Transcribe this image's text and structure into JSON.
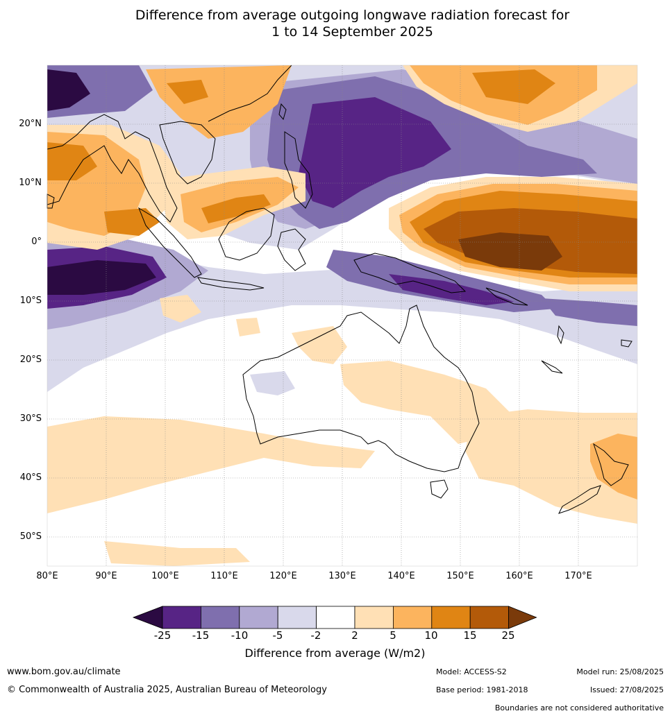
{
  "title": {
    "line1": "Difference from average outgoing longwave radiation forecast for",
    "line2": "1 to 14 September 2025"
  },
  "map": {
    "lat_labels": [
      "20°N",
      "10°N",
      "0°",
      "10°S",
      "20°S",
      "30°S",
      "40°S",
      "50°S"
    ],
    "lon_labels": [
      "80°E",
      "90°E",
      "100°E",
      "110°E",
      "120°E",
      "130°E",
      "140°E",
      "150°E",
      "160°E",
      "170°E"
    ]
  },
  "colorbar": {
    "title": "Difference from average (W/m2)",
    "tick_labels": [
      "-25",
      "-15",
      "-10",
      "-5",
      "-2",
      "2",
      "5",
      "10",
      "15",
      "25"
    ],
    "colors": [
      "#2b0a42",
      "#572485",
      "#7f6fae",
      "#b1a9d2",
      "#d9d9eb",
      "#ffffff",
      "#ffe0b5",
      "#fcb45e",
      "#e08514",
      "#b35a09",
      "#7a3a0a"
    ]
  },
  "footer": {
    "website": "www.bom.gov.au/climate",
    "copyright": "© Commonwealth of Australia 2025, Australian Bureau of Meteorology",
    "model": "Model: ACCESS-S2",
    "base_period": "Base period: 1981-2018",
    "model_run": "Model run: 25/08/2025",
    "issued": "Issued: 27/08/2025",
    "disclaimer": "Boundaries are not considered authoritative"
  }
}
